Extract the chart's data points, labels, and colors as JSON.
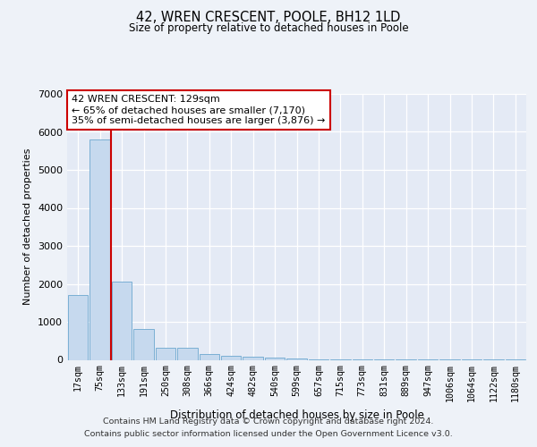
{
  "title": "42, WREN CRESCENT, POOLE, BH12 1LD",
  "subtitle": "Size of property relative to detached houses in Poole",
  "xlabel": "Distribution of detached houses by size in Poole",
  "ylabel": "Number of detached properties",
  "categories": [
    "17sqm",
    "75sqm",
    "133sqm",
    "191sqm",
    "250sqm",
    "308sqm",
    "366sqm",
    "424sqm",
    "482sqm",
    "540sqm",
    "599sqm",
    "657sqm",
    "715sqm",
    "773sqm",
    "831sqm",
    "889sqm",
    "947sqm",
    "1006sqm",
    "1064sqm",
    "1122sqm",
    "1180sqm"
  ],
  "values": [
    1700,
    5800,
    2050,
    820,
    320,
    310,
    150,
    100,
    90,
    55,
    25,
    8,
    5,
    3,
    2,
    2,
    1,
    1,
    1,
    1,
    1
  ],
  "bar_color": "#c6d9ee",
  "bar_edge_color": "#7aafd4",
  "property_line_color": "#cc0000",
  "annotation_text": "42 WREN CRESCENT: 129sqm\n← 65% of detached houses are smaller (7,170)\n35% of semi-detached houses are larger (3,876) →",
  "annotation_box_color": "#ffffff",
  "annotation_box_edge": "#cc0000",
  "footer_line1": "Contains HM Land Registry data © Crown copyright and database right 2024.",
  "footer_line2": "Contains public sector information licensed under the Open Government Licence v3.0.",
  "ylim": [
    0,
    7000
  ],
  "yticks": [
    0,
    1000,
    2000,
    3000,
    4000,
    5000,
    6000,
    7000
  ],
  "background_color": "#eef2f8",
  "plot_bg_color": "#e4eaf5"
}
